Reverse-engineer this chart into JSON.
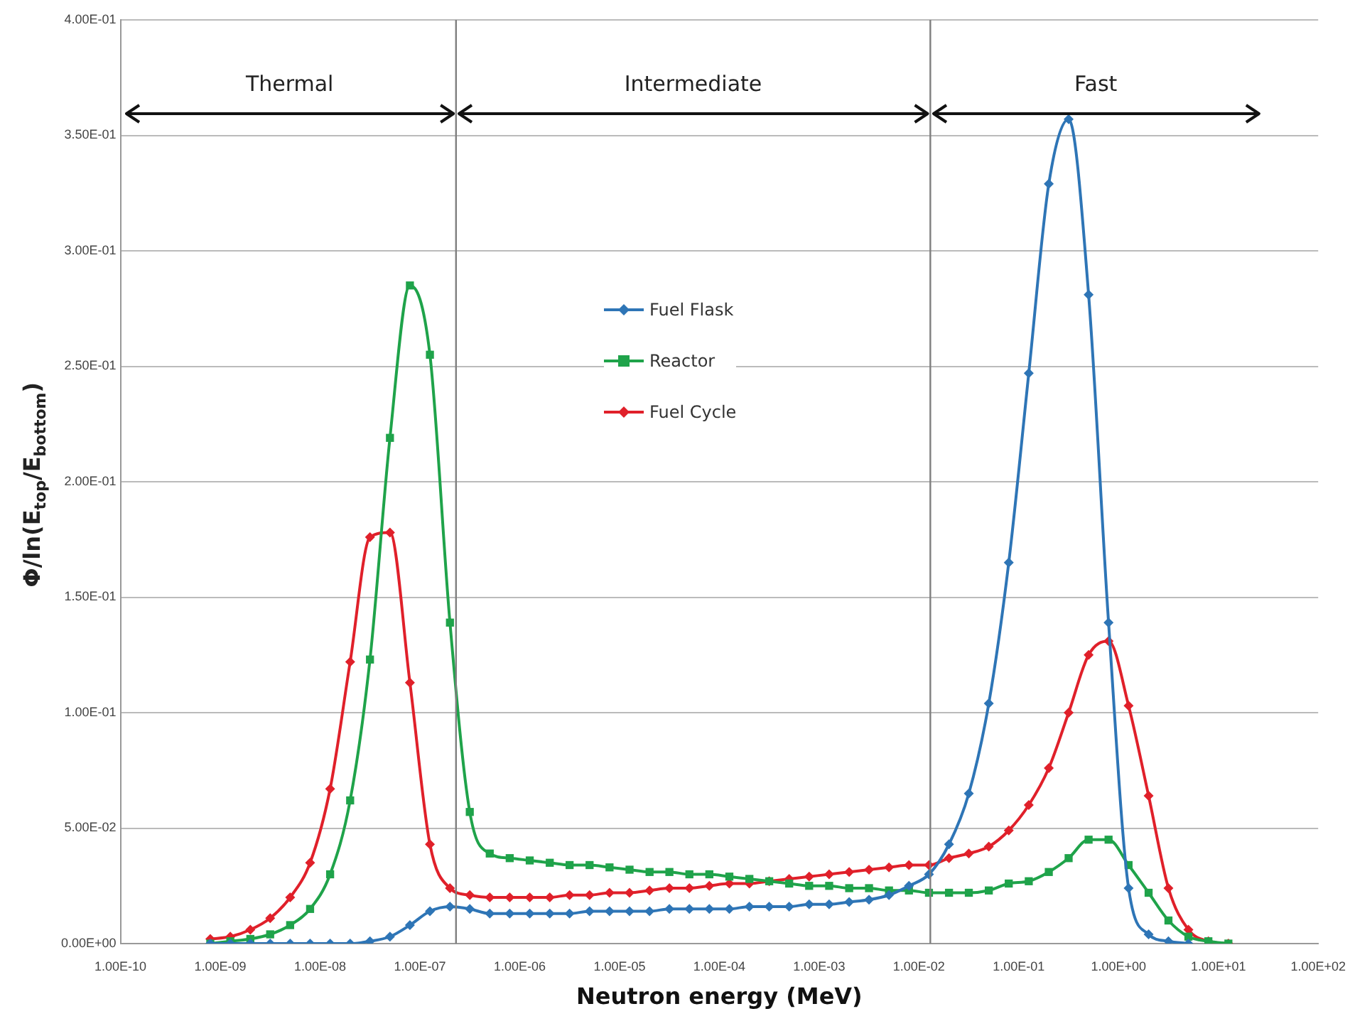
{
  "chart_data": {
    "type": "line",
    "xlabel": "Neutron energy (MeV)",
    "ylabel": "Φ/ln(E$_{top}$/E$_{bottom}$)",
    "x": [
      7.94e-10,
      1.26e-09,
      2e-09,
      3.16e-09,
      5.01e-09,
      7.94e-09,
      1.26e-08,
      2e-08,
      3.16e-08,
      5.01e-08,
      7.94e-08,
      1.26e-07,
      2e-07,
      3.16e-07,
      5.01e-07,
      7.94e-07,
      1.26e-06,
      2e-06,
      3.16e-06,
      5.01e-06,
      7.94e-06,
      1.26e-05,
      2e-05,
      3.16e-05,
      5.01e-05,
      7.94e-05,
      0.000126,
      0.0002,
      0.000316,
      0.000501,
      0.000794,
      0.00126,
      0.002,
      0.00316,
      0.00501,
      0.00794,
      0.0126,
      0.02,
      0.0316,
      0.0501,
      0.0794,
      0.126,
      0.2,
      0.316,
      0.501,
      0.794,
      1.26,
      2.0,
      3.16,
      5.01,
      7.94,
      12.6
    ],
    "series": [
      {
        "name": "Fuel Flask",
        "color": "#2e75b6",
        "marker": "diamond",
        "values": [
          0,
          0,
          0,
          0,
          0,
          0,
          0,
          0,
          0.001,
          0.003,
          0.008,
          0.014,
          0.016,
          0.015,
          0.013,
          0.013,
          0.013,
          0.013,
          0.013,
          0.014,
          0.014,
          0.014,
          0.014,
          0.015,
          0.015,
          0.015,
          0.015,
          0.016,
          0.016,
          0.016,
          0.017,
          0.017,
          0.018,
          0.019,
          0.021,
          0.025,
          0.03,
          0.043,
          0.065,
          0.104,
          0.165,
          0.247,
          0.329,
          0.357,
          0.281,
          0.139,
          0.024,
          0.004,
          0.001,
          0,
          null,
          null
        ]
      },
      {
        "name": "Reactor",
        "color": "#1fa34a",
        "marker": "square",
        "values": [
          0,
          0.001,
          0.002,
          0.004,
          0.008,
          0.015,
          0.03,
          0.062,
          0.123,
          0.219,
          0.285,
          0.255,
          0.139,
          0.057,
          0.039,
          0.037,
          0.036,
          0.035,
          0.034,
          0.034,
          0.033,
          0.032,
          0.031,
          0.031,
          0.03,
          0.03,
          0.029,
          0.028,
          0.027,
          0.026,
          0.025,
          0.025,
          0.024,
          0.024,
          0.023,
          0.023,
          0.022,
          0.022,
          0.022,
          0.023,
          0.026,
          0.027,
          0.031,
          0.037,
          0.045,
          0.045,
          0.034,
          0.022,
          0.01,
          0.003,
          0.001,
          0
        ]
      },
      {
        "name": "Fuel Cycle",
        "color": "#e0202a",
        "marker": "diamond",
        "values": [
          0.002,
          0.003,
          0.006,
          0.011,
          0.02,
          0.035,
          0.067,
          0.122,
          0.176,
          0.178,
          0.113,
          0.043,
          0.024,
          0.021,
          0.02,
          0.02,
          0.02,
          0.02,
          0.021,
          0.021,
          0.022,
          0.022,
          0.023,
          0.024,
          0.024,
          0.025,
          0.026,
          0.026,
          0.027,
          0.028,
          0.029,
          0.03,
          0.031,
          0.032,
          0.033,
          0.034,
          0.034,
          0.037,
          0.039,
          0.042,
          0.049,
          0.06,
          0.076,
          0.1,
          0.125,
          0.131,
          0.103,
          0.064,
          0.024,
          0.006,
          0.001,
          0
        ]
      }
    ],
    "log": "x",
    "xlim": [
      1e-10,
      100
    ],
    "xticks": [
      {
        "value": 1e-10,
        "label": "1.00E-10"
      },
      {
        "value": 1e-09,
        "label": "1.00E-09"
      },
      {
        "value": 1e-08,
        "label": "1.00E-08"
      },
      {
        "value": 1e-07,
        "label": "1.00E-07"
      },
      {
        "value": 1e-06,
        "label": "1.00E-06"
      },
      {
        "value": 1e-05,
        "label": "1.00E-05"
      },
      {
        "value": 0.0001,
        "label": "1.00E-04"
      },
      {
        "value": 0.001,
        "label": "1.00E-03"
      },
      {
        "value": 0.01,
        "label": "1.00E-02"
      },
      {
        "value": 0.1,
        "label": "1.00E-01"
      },
      {
        "value": 1,
        "label": "1.00E+00"
      },
      {
        "value": 10,
        "label": "1.00E+01"
      },
      {
        "value": 100,
        "label": "1.00E+02"
      }
    ],
    "ylim": [
      0,
      0.4
    ],
    "yticks": [
      {
        "value": 0,
        "label": "0.00E+00"
      },
      {
        "value": 0.05,
        "label": "5.00E-02"
      },
      {
        "value": 0.1,
        "label": "1.00E-01"
      },
      {
        "value": 0.15,
        "label": "1.50E-01"
      },
      {
        "value": 0.2,
        "label": "2.00E-01"
      },
      {
        "value": 0.25,
        "label": "2.50E-01"
      },
      {
        "value": 0.3,
        "label": "3.00E-01"
      },
      {
        "value": 0.35,
        "label": "3.50E-01"
      },
      {
        "value": 0.4,
        "label": "4.00E-01"
      }
    ],
    "grid": "y",
    "legend": "top",
    "line_style": "solid",
    "ref_lines": [
      {
        "axis": "x",
        "value": 2.3e-07,
        "color": "#7f7f7f"
      },
      {
        "axis": "x",
        "value": 0.013,
        "color": "#7f7f7f"
      }
    ],
    "annotations": [
      "Thermal",
      "Intermediate",
      "Fast"
    ]
  }
}
